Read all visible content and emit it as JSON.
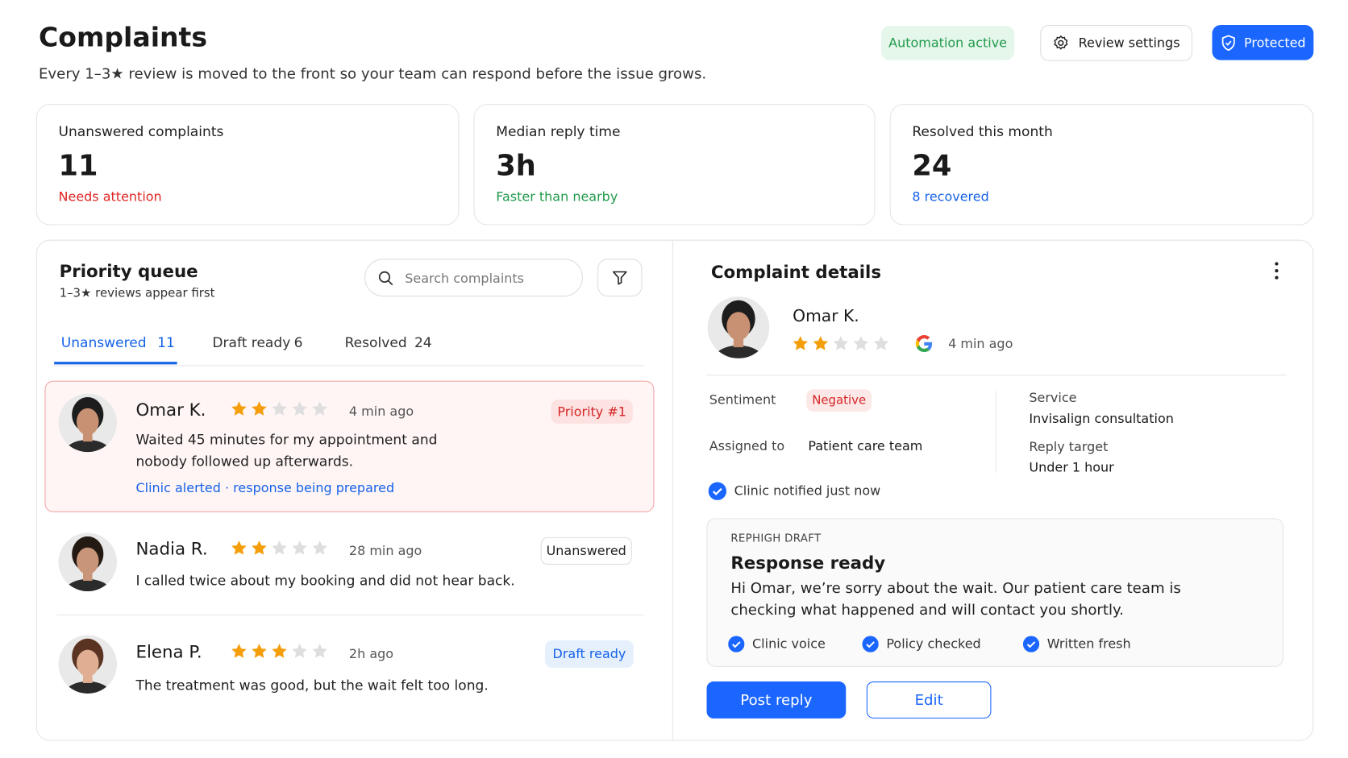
{
  "header": {
    "title": "Complaints",
    "subtitle": "Every 1–3★ review is moved to the front so your team can respond before the issue grows.",
    "status": "Automation active",
    "settings": "Review settings",
    "protected": "Protected"
  },
  "stats": [
    {
      "label": "Unanswered complaints",
      "value": "11",
      "note": "Needs attention"
    },
    {
      "label": "Median reply time",
      "value": "3h",
      "note": "Faster than nearby"
    },
    {
      "label": "Resolved this month",
      "value": "24",
      "note": "8 recovered"
    }
  ],
  "queue": {
    "title": "Priority queue",
    "subtitle": "1–3★ reviews appear first",
    "search_placeholder": "Search complaints",
    "tabs": [
      {
        "label": "Unanswered",
        "count": "11"
      },
      {
        "label": "Draft ready",
        "count": "6"
      },
      {
        "label": "Resolved",
        "count": "24"
      }
    ],
    "items": [
      {
        "name": "Omar K.",
        "rating": 2,
        "time": "4 min ago",
        "badge": "Priority #1",
        "text": "Waited 45 minutes for my appointment and nobody followed up afterwards.",
        "note": "Clinic alerted · response being prepared"
      },
      {
        "name": "Nadia R.",
        "rating": 2,
        "time": "28 min ago",
        "badge": "Unanswered",
        "text": "I called twice about my booking and did not hear back."
      },
      {
        "name": "Elena P.",
        "rating": 3,
        "time": "2h ago",
        "badge": "Draft ready",
        "text": "The treatment was good, but the wait felt too long."
      }
    ]
  },
  "details": {
    "title": "Complaint details",
    "name": "Omar K.",
    "rating": 2,
    "time": "4 min ago",
    "fields": [
      {
        "label": "Sentiment",
        "value": "Negative"
      },
      {
        "label": "Assigned to",
        "value": "Patient care team"
      },
      {
        "label": "Service",
        "value": "Invisalign consultation"
      },
      {
        "label": "Reply target",
        "value": "Under 1 hour"
      }
    ],
    "notified": "Clinic notified just now",
    "draft": {
      "eyebrow": "REPHIGH DRAFT",
      "title": "Response ready",
      "text": "Hi Omar, we’re sorry about the wait. Our patient care team is checking what happened and will contact you shortly.",
      "checks": [
        "Clinic voice",
        "Policy checked",
        "Written fresh"
      ]
    },
    "post": "Post reply",
    "edit": "Edit"
  }
}
